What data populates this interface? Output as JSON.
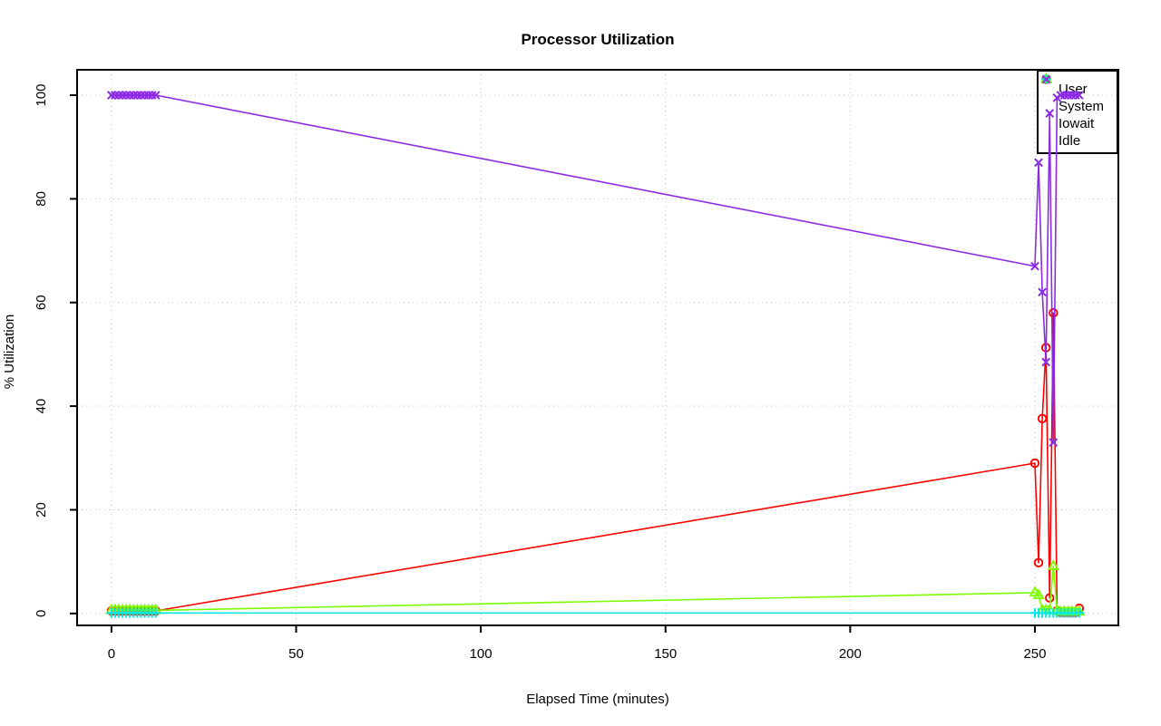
{
  "chart_data": {
    "type": "line",
    "title": "Processor Utilization",
    "xlabel": "Elapsed Time (minutes)",
    "ylabel": "% Utilization",
    "xlim": [
      -9.3,
      272.6
    ],
    "ylim": [
      -2.3,
      104.9
    ],
    "x_ticks": [
      0,
      50,
      100,
      150,
      200,
      250
    ],
    "y_ticks": [
      0,
      20,
      40,
      60,
      80,
      100
    ],
    "grid": true,
    "grid_style": "dotted",
    "grid_color": "#c4c4c4",
    "legend_position": "topright",
    "x": [
      0,
      1,
      2,
      3,
      4,
      5,
      6,
      7,
      8,
      9,
      10,
      11,
      12,
      250,
      251,
      252,
      253,
      254,
      255,
      256,
      257,
      258,
      259,
      260,
      261,
      262
    ],
    "series": [
      {
        "name": "User",
        "color": "#ff0000",
        "marker": "circle",
        "values": [
          0.5,
          0.5,
          0.5,
          0.5,
          0.5,
          0.5,
          0.5,
          0.5,
          0.5,
          0.5,
          0.5,
          0.5,
          0.5,
          29,
          9.8,
          37.6,
          51.3,
          3,
          58,
          0.5,
          0.2,
          0.2,
          0.2,
          0.2,
          0.2,
          1
        ]
      },
      {
        "name": "System",
        "color": "#7cfc00",
        "marker": "triangle-up",
        "values": [
          0.6,
          0.6,
          0.6,
          0.6,
          0.6,
          0.6,
          0.6,
          0.6,
          0.6,
          0.6,
          0.6,
          0.6,
          0.6,
          4,
          3.5,
          0.6,
          0.6,
          0.6,
          9.1,
          0.5,
          0.3,
          0.3,
          0.3,
          0.3,
          0.3,
          0.3
        ]
      },
      {
        "name": "Iowait",
        "color": "#00e5e5",
        "marker": "plus",
        "values": [
          0.1,
          0.1,
          0.1,
          0.1,
          0.1,
          0.1,
          0.1,
          0.1,
          0.1,
          0.1,
          0.1,
          0.1,
          0.1,
          0.1,
          0.1,
          0.1,
          0.1,
          0.1,
          0.1,
          0.1,
          0.1,
          0.1,
          0.1,
          0.1,
          0.1,
          0.1
        ]
      },
      {
        "name": "Idle",
        "color": "#8a2be2",
        "marker": "x",
        "values": [
          100,
          100,
          100,
          100,
          100,
          100,
          100,
          100,
          100,
          100,
          100,
          100,
          100,
          67,
          87,
          62,
          48.5,
          96.5,
          33,
          99.5,
          100,
          100,
          100,
          100,
          100,
          100
        ]
      }
    ]
  }
}
